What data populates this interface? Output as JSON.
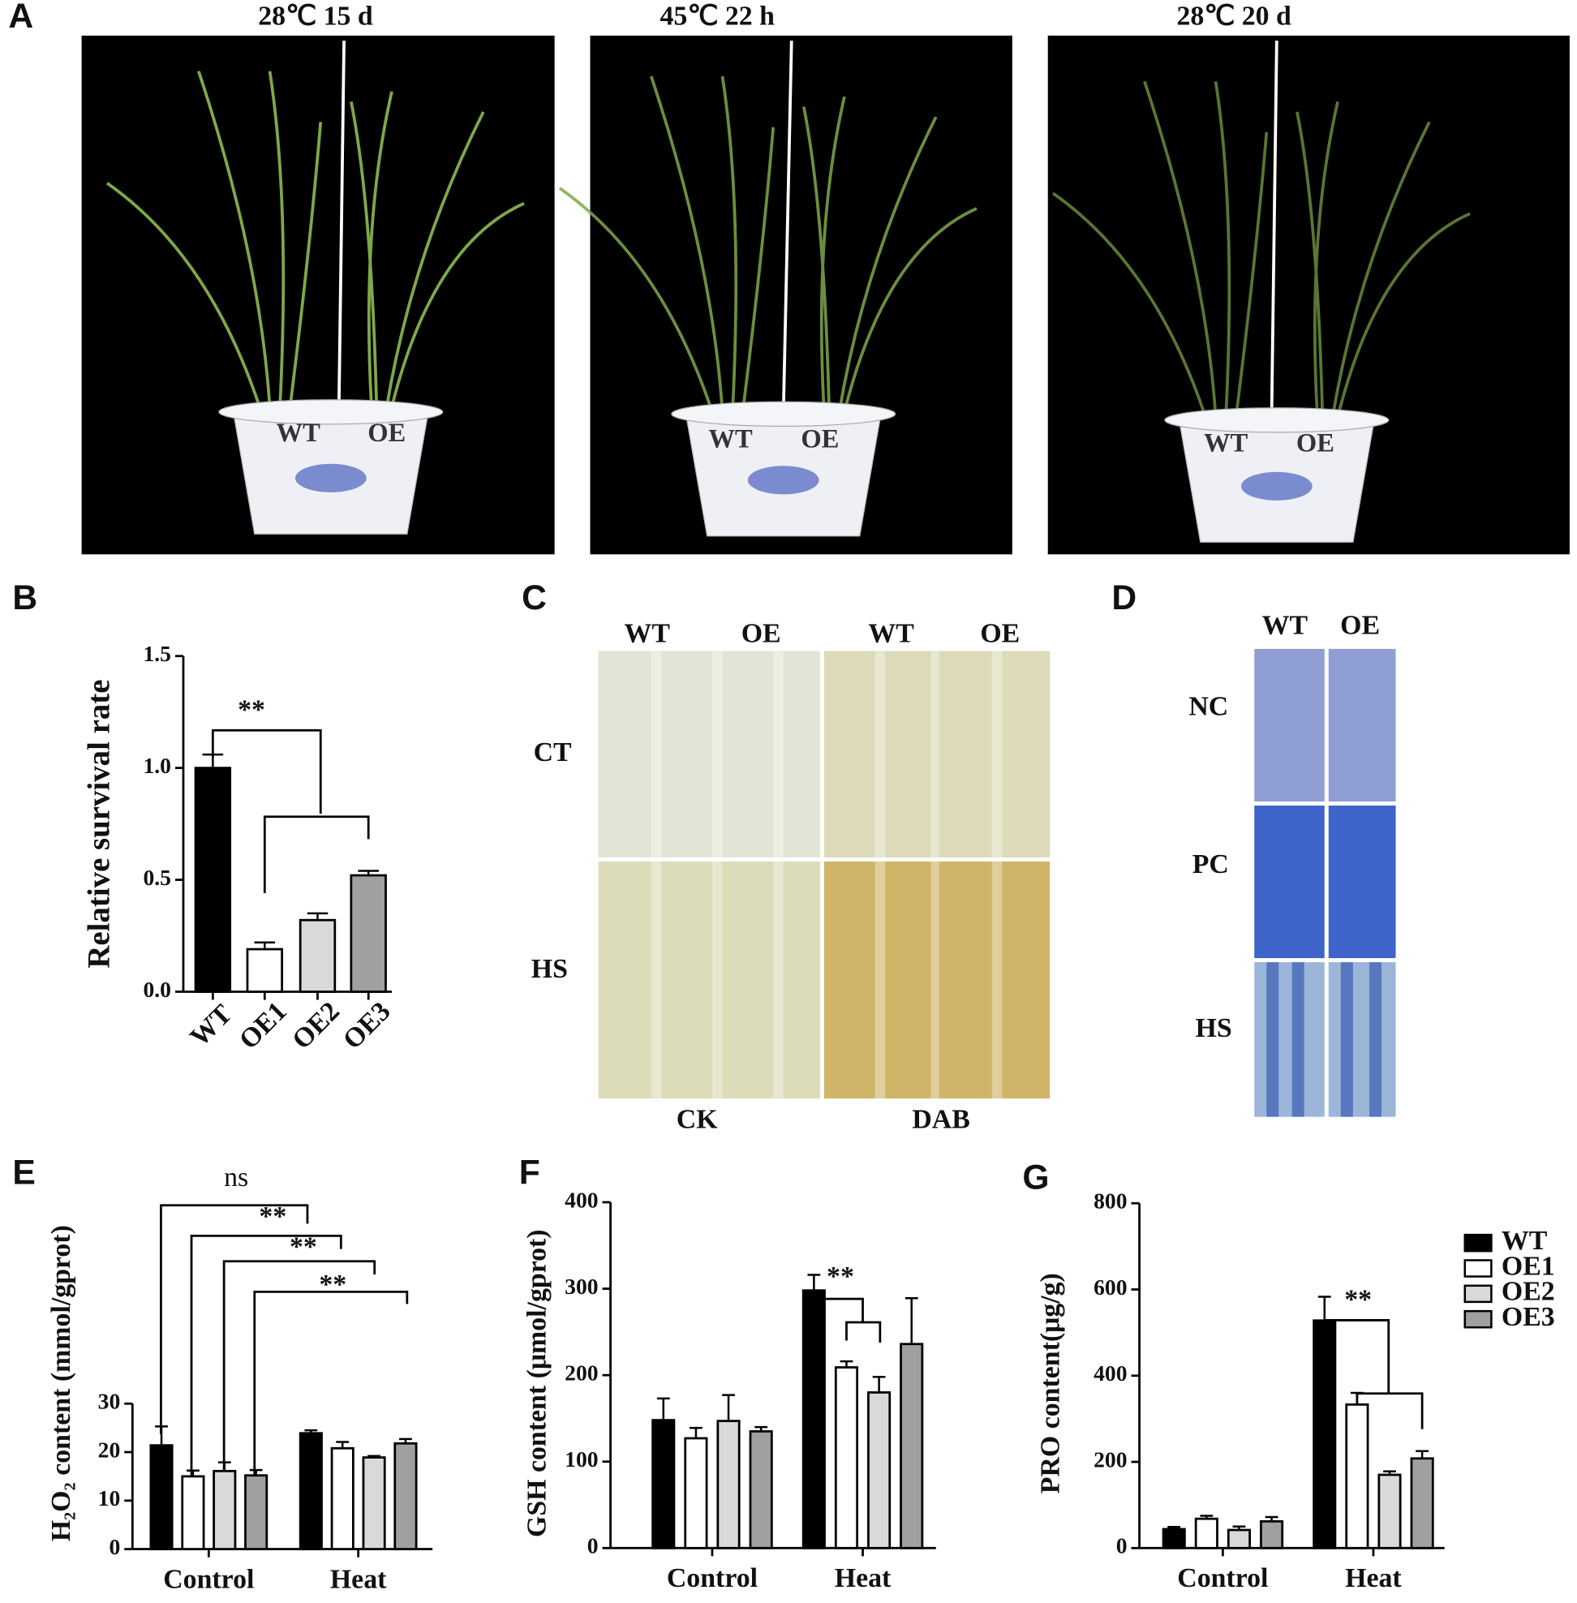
{
  "panel_a": {
    "letter": "A",
    "titles": [
      "28℃ 15 d",
      "45℃ 22 h",
      "28℃ 20 d"
    ],
    "pot_labels": [
      "WT",
      "OE"
    ]
  },
  "panel_c": {
    "letter": "C",
    "columns": [
      "WT",
      "OE",
      "WT",
      "OE"
    ],
    "rows": [
      "CT",
      "HS"
    ],
    "bottom": [
      "CK",
      "DAB"
    ]
  },
  "panel_d": {
    "letter": "D",
    "columns": [
      "WT",
      "OE"
    ],
    "rows": [
      "NC",
      "PC",
      "HS"
    ]
  },
  "chart_data": [
    {
      "type": "bar",
      "letter": "B",
      "y_label": "Relative survival rate",
      "categories": [
        "WT",
        "OE1",
        "OE2",
        "OE3"
      ],
      "values": [
        1.0,
        0.19,
        0.32,
        0.52
      ],
      "errors": [
        0.06,
        0.03,
        0.03,
        0.02
      ],
      "colors": [
        "#000000",
        "#ffffff",
        "#d9d9d9",
        "#a0a0a0"
      ],
      "ylim": [
        0,
        1.5
      ],
      "yticks": [
        {
          "value": 0,
          "label": "0.0"
        },
        0.5,
        {
          "value": 1,
          "label": "1.0"
        },
        1.5
      ],
      "annotations": [
        "**"
      ]
    },
    {
      "type": "grouped_bar",
      "letter": "E",
      "y_label": "H₂O₂ content (mmol/gprot)",
      "categories": [
        "Control",
        "Heat"
      ],
      "series": [
        {
          "color": "#000000",
          "values": [
            21.4,
            23.9
          ],
          "errors": [
            3.9,
            0.6
          ]
        },
        {
          "color": "#ffffff",
          "values": [
            15.0,
            20.8
          ],
          "errors": [
            1.2,
            1.3
          ]
        },
        {
          "color": "#d9d9d9",
          "values": [
            16.1,
            18.9
          ],
          "errors": [
            1.8,
            0.3
          ]
        },
        {
          "color": "#a0a0a0",
          "values": [
            15.2,
            21.8
          ],
          "errors": [
            1.1,
            0.9
          ]
        }
      ],
      "ylim": [
        0,
        30
      ],
      "yticks": [
        0,
        10,
        20,
        30
      ],
      "annotations": [
        "ns",
        "**",
        "**",
        "**"
      ]
    },
    {
      "type": "grouped_bar",
      "letter": "F",
      "y_label": "GSH content (μmol/gprot)",
      "categories": [
        "Control",
        "Heat"
      ],
      "series": [
        {
          "color": "#000000",
          "values": [
            148,
            298
          ],
          "errors": [
            25,
            18
          ]
        },
        {
          "color": "#ffffff",
          "values": [
            127,
            209
          ],
          "errors": [
            12,
            7
          ]
        },
        {
          "color": "#d9d9d9",
          "values": [
            147,
            180
          ],
          "errors": [
            30,
            18
          ]
        },
        {
          "color": "#a0a0a0",
          "values": [
            135,
            236
          ],
          "errors": [
            5,
            53
          ]
        }
      ],
      "ylim": [
        0,
        400
      ],
      "yticks": [
        0,
        100,
        200,
        300,
        400
      ],
      "annotations": [
        "**"
      ]
    },
    {
      "type": "grouped_bar",
      "letter": "G",
      "y_label": "PRO content(μg/g)",
      "categories": [
        "Control",
        "Heat"
      ],
      "series": [
        {
          "name": "WT",
          "color": "#000000",
          "values": [
            44,
            528
          ],
          "errors": [
            5,
            55
          ]
        },
        {
          "name": "OE1",
          "color": "#ffffff",
          "values": [
            68,
            333
          ],
          "errors": [
            7,
            27
          ]
        },
        {
          "name": "OE2",
          "color": "#d9d9d9",
          "values": [
            42,
            170
          ],
          "errors": [
            8,
            8
          ]
        },
        {
          "name": "OE3",
          "color": "#a0a0a0",
          "values": [
            62,
            208
          ],
          "errors": [
            10,
            17
          ]
        }
      ],
      "ylim": [
        0,
        800
      ],
      "yticks": [
        0,
        200,
        400,
        600,
        800
      ],
      "annotations": [
        "**"
      ],
      "legend": "right"
    }
  ]
}
